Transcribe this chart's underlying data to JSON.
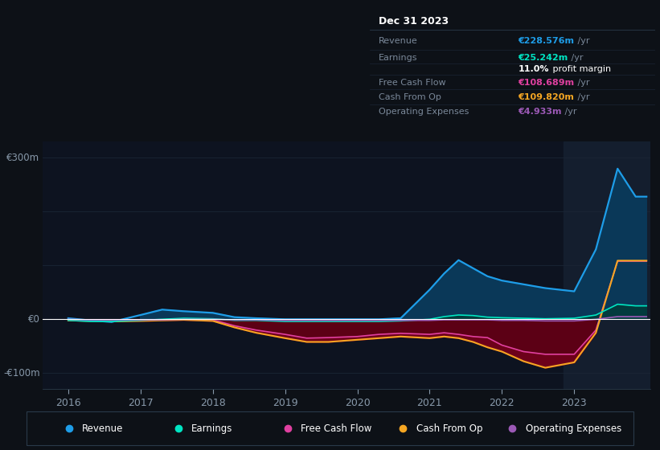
{
  "bg_color": "#0d1117",
  "chart_bg": "#0d1320",
  "grid_color": "#1a2535",
  "zero_line_color": "#ffffff",
  "ylim": [
    -130,
    330
  ],
  "ytick_labels": [
    "€300m",
    "€0",
    "-€100m"
  ],
  "years": [
    2016.0,
    2016.3,
    2016.6,
    2017.0,
    2017.3,
    2017.6,
    2018.0,
    2018.3,
    2018.6,
    2019.0,
    2019.3,
    2019.6,
    2020.0,
    2020.3,
    2020.6,
    2021.0,
    2021.2,
    2021.4,
    2021.6,
    2021.8,
    2022.0,
    2022.3,
    2022.6,
    2023.0,
    2023.3,
    2023.6,
    2023.85,
    2024.0
  ],
  "revenue": [
    2,
    -2,
    -5,
    8,
    18,
    15,
    12,
    4,
    2,
    0,
    0,
    0,
    0,
    0,
    2,
    55,
    85,
    110,
    95,
    80,
    72,
    65,
    58,
    52,
    130,
    280,
    228,
    228
  ],
  "earnings": [
    -2,
    -4,
    -4,
    -2,
    0,
    2,
    1,
    -2,
    -2,
    -4,
    -4,
    -4,
    -4,
    -4,
    -3,
    0,
    5,
    8,
    7,
    4,
    3,
    2,
    1,
    2,
    8,
    28,
    25,
    25
  ],
  "free_cash_flow": [
    -1,
    -2,
    -3,
    -2,
    -1,
    0,
    -1,
    -12,
    -20,
    -28,
    -35,
    -34,
    -32,
    -28,
    -26,
    -28,
    -25,
    -28,
    -32,
    -34,
    -48,
    -60,
    -65,
    -65,
    -20,
    108,
    108,
    108
  ],
  "cash_from_op": [
    -2,
    -3,
    -4,
    -3,
    -2,
    -1,
    -3,
    -15,
    -25,
    -35,
    -42,
    -42,
    -38,
    -35,
    -32,
    -35,
    -32,
    -35,
    -42,
    -52,
    -60,
    -78,
    -90,
    -80,
    -25,
    109,
    109,
    109
  ],
  "operating_expenses": [
    0,
    -1,
    -1,
    -1,
    -1,
    0,
    0,
    -1,
    -1,
    -2,
    -2,
    -2,
    -2,
    -2,
    -2,
    -2,
    -1,
    -1,
    -1,
    -1,
    -2,
    -2,
    -3,
    -3,
    0,
    5,
    5,
    5
  ],
  "revenue_color": "#1e9de8",
  "earnings_color": "#00e5c3",
  "fcf_color": "#e040a0",
  "cashop_color": "#f5a623",
  "opex_color": "#9b59b6",
  "revenue_fill": "#0a3050",
  "neg_fill": "#3d0010",
  "highlight_color": "#141e2e",
  "info_box": {
    "title": "Dec 31 2023",
    "rows": [
      {
        "label": "Revenue",
        "value": "€228.576m",
        "value_color": "#1e9de8"
      },
      {
        "label": "Earnings",
        "value": "€25.242m",
        "value_color": "#00e5c3"
      },
      {
        "label": "",
        "value": "11.0% profit margin",
        "value_color": "#ffffff"
      },
      {
        "label": "Free Cash Flow",
        "value": "€108.689m",
        "value_color": "#e040a0"
      },
      {
        "label": "Cash From Op",
        "value": "€109.820m",
        "value_color": "#f5a623"
      },
      {
        "label": "Operating Expenses",
        "value": "€4.933m",
        "value_color": "#9b59b6"
      }
    ]
  },
  "legend_items": [
    {
      "label": "Revenue",
      "color": "#1e9de8"
    },
    {
      "label": "Earnings",
      "color": "#00e5c3"
    },
    {
      "label": "Free Cash Flow",
      "color": "#e040a0"
    },
    {
      "label": "Cash From Op",
      "color": "#f5a623"
    },
    {
      "label": "Operating Expenses",
      "color": "#9b59b6"
    }
  ]
}
